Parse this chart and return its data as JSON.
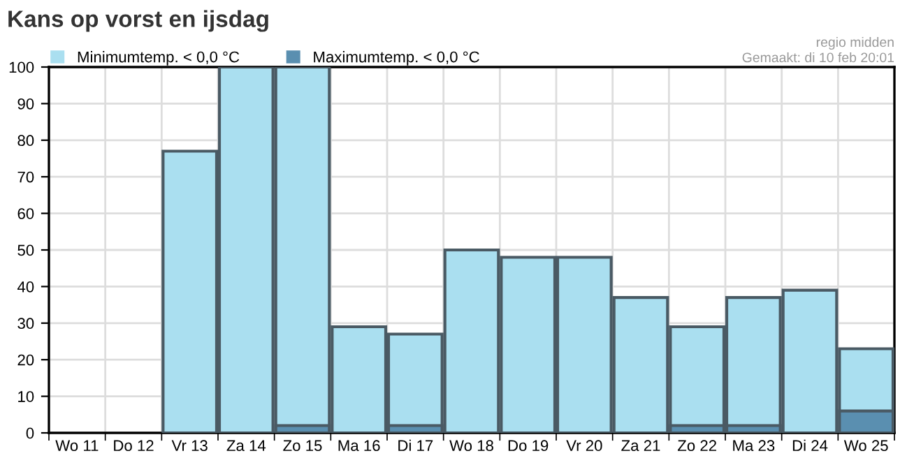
{
  "chart_data": {
    "type": "bar",
    "title": "Kans op vorst en ijsdag",
    "categories": [
      "Wo 11",
      "Do 12",
      "Vr 13",
      "Za 14",
      "Zo 15",
      "Ma 16",
      "Di 17",
      "Wo 18",
      "Do 19",
      "Vr 20",
      "Za 21",
      "Zo 22",
      "Ma 23",
      "Di 24",
      "Wo 25"
    ],
    "series": [
      {
        "name": "Minimumtemp. < 0,0 °C",
        "color": "#aadff0",
        "values": [
          0,
          0,
          77,
          100,
          100,
          29,
          27,
          50,
          48,
          48,
          37,
          29,
          37,
          39,
          23
        ]
      },
      {
        "name": "Maximumtemp. < 0,0 °C",
        "color": "#5a8fb0",
        "values": [
          0,
          0,
          0,
          0,
          2,
          0,
          2,
          0,
          0,
          0,
          0,
          2,
          2,
          0,
          6
        ]
      }
    ],
    "ylim": [
      0,
      100
    ],
    "yticks": [
      0,
      10,
      20,
      30,
      40,
      50,
      60,
      70,
      80,
      90,
      100
    ],
    "grid": true,
    "legend": "top left",
    "annotations": [
      "regio midden",
      "Gemaakt: di 10 feb 20:01"
    ]
  }
}
